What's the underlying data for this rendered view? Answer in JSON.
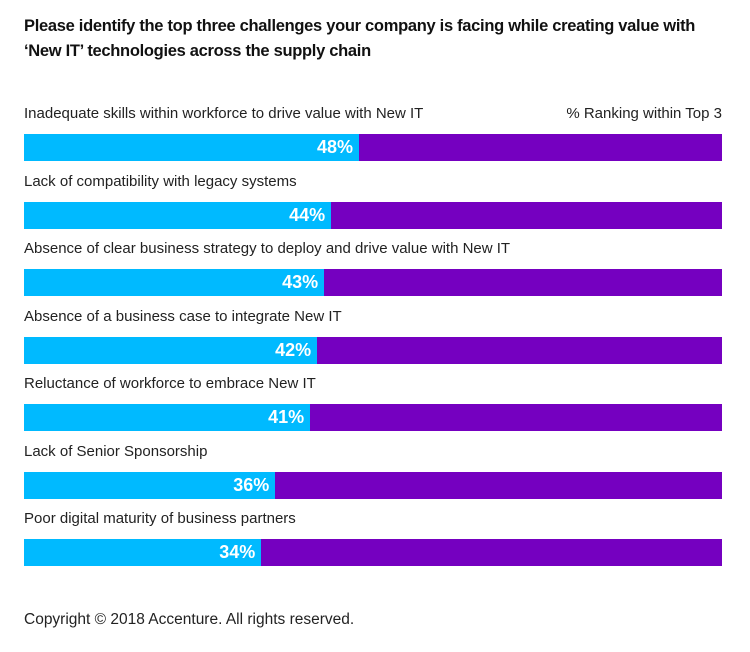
{
  "title": "Please identify the top three challenges your company is facing while creating value with ‘New IT’ technologies across the supply chain",
  "legend_label": "% Ranking within Top 3",
  "footer": "Copyright © 2018 Accenture. All rights reserved.",
  "colors": {
    "value_fill": "#00baff",
    "remainder_fill": "#7500c0",
    "value_text": "#ffffff"
  },
  "chart_data": {
    "type": "bar",
    "orientation": "horizontal",
    "title": "Please identify the top three challenges your company is facing while creating value with ‘New IT’ technologies across the supply chain",
    "xlabel": "% Ranking within Top 3",
    "ylabel": "",
    "xlim": [
      0,
      100
    ],
    "grid": false,
    "legend": "top-right",
    "categories": [
      "Inadequate skills within workforce to drive value with New IT",
      "Lack of compatibility with legacy systems",
      "Absence of clear business strategy to deploy and drive value with New IT",
      "Absence of a business case to integrate New IT",
      "Reluctance of workforce to embrace New IT",
      "Lack of Senior Sponsorship",
      "Poor digital maturity of business partners"
    ],
    "values": [
      48,
      44,
      43,
      42,
      41,
      36,
      34
    ],
    "value_labels": [
      "48%",
      "44%",
      "43%",
      "42%",
      "41%",
      "36%",
      "34%"
    ]
  }
}
